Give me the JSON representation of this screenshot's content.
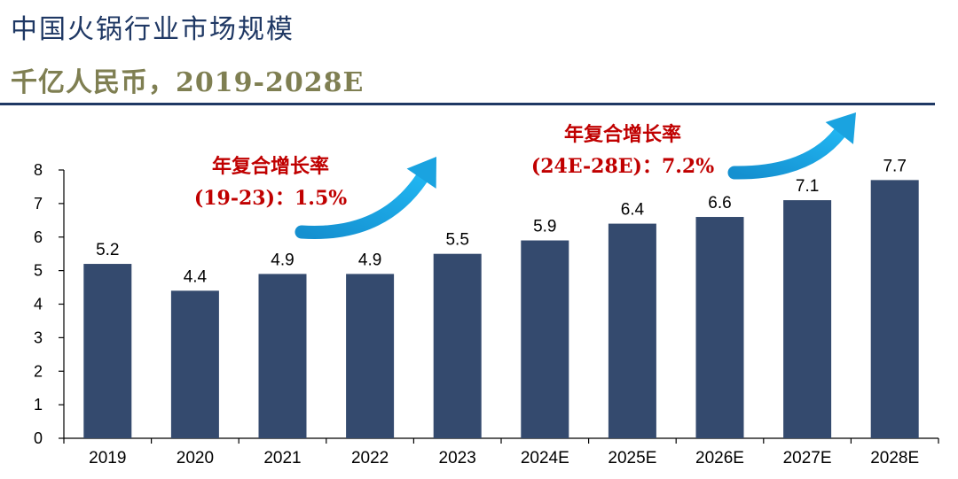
{
  "header": {
    "title": "中国火锅行业市场规模",
    "subtitle": "千亿人民币，2019-2028E"
  },
  "annotations": {
    "cagr_1_label": "年复合增长率",
    "cagr_1_value": "(19-23)：1.5%",
    "cagr_2_label": "年复合增长率",
    "cagr_2_value": "(24E-28E)：7.2%"
  },
  "colors": {
    "bar": "#344a6e",
    "arrow": "#1aa3e0",
    "annotation": "#c00000",
    "title": "#1f3864",
    "subtitle": "#7f7f52"
  },
  "chart_data": {
    "type": "bar",
    "categories": [
      "2019",
      "2020",
      "2021",
      "2022",
      "2023",
      "2024E",
      "2025E",
      "2026E",
      "2027E",
      "2028E"
    ],
    "values": [
      5.2,
      4.4,
      4.9,
      4.9,
      5.5,
      5.9,
      6.4,
      6.6,
      7.1,
      7.7
    ],
    "data_labels": [
      "5.2",
      "4.4",
      "4.9",
      "4.9",
      "5.5",
      "5.9",
      "6.4",
      "6.6",
      "7.1",
      "7.7"
    ],
    "yticks": [
      "0",
      "1",
      "2",
      "3",
      "4",
      "5",
      "6",
      "7",
      "8"
    ],
    "ylim": [
      0,
      8
    ],
    "grid": false,
    "legend": "none",
    "title": "中国火锅行业市场规模",
    "xlabel": "",
    "ylabel": ""
  }
}
